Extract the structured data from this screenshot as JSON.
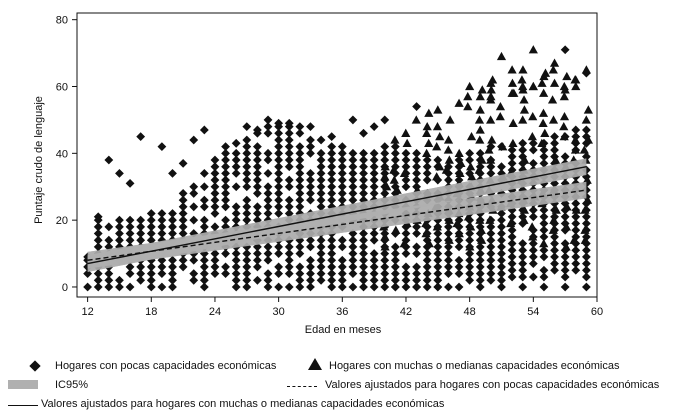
{
  "chart_data": {
    "type": "scatter",
    "title": "",
    "xlabel": "Edad en meses",
    "ylabel": "Puntaje crudo de lenguaje",
    "xlim": [
      11,
      60
    ],
    "ylim": [
      -3,
      82
    ],
    "xticks": [
      12,
      18,
      24,
      30,
      36,
      42,
      48,
      54,
      60
    ],
    "yticks": [
      0,
      20,
      40,
      60,
      80
    ],
    "grid": false,
    "legend_position": "bottom",
    "series": [
      {
        "name": "Hogares con pocas capacidades económicas",
        "marker": "diamond",
        "age_range": [
          12,
          59
        ],
        "band_low": [
          0,
          0,
          0,
          0,
          0,
          0,
          0,
          0,
          0,
          0,
          0,
          0,
          0,
          0,
          0,
          0,
          0,
          0,
          0,
          0,
          0,
          0,
          0,
          0,
          0,
          0,
          0,
          0,
          0,
          0,
          0,
          0,
          0,
          0,
          0,
          2,
          2,
          2,
          2,
          2,
          3,
          3,
          3,
          3,
          3,
          3,
          3,
          3
        ],
        "band_high": [
          9,
          21,
          18,
          20,
          20,
          21,
          22,
          22,
          27,
          28,
          30,
          35,
          38,
          42,
          42,
          45,
          47,
          49,
          49,
          49,
          48,
          48,
          46,
          43,
          43,
          41,
          41,
          41,
          42,
          42,
          40,
          40,
          38,
          38,
          38,
          40,
          40,
          40,
          42,
          42,
          42,
          43,
          44,
          44,
          46,
          46,
          48,
          48
        ],
        "points": [
          [
            12,
            9
          ],
          [
            13,
            21
          ],
          [
            14,
            38
          ],
          [
            15,
            34
          ],
          [
            16,
            31
          ],
          [
            17,
            45
          ],
          [
            19,
            42
          ],
          [
            20,
            34
          ],
          [
            21,
            37
          ],
          [
            22,
            44
          ],
          [
            23,
            47
          ],
          [
            26,
            43
          ],
          [
            27,
            48
          ],
          [
            28,
            47
          ],
          [
            29,
            50
          ],
          [
            30,
            49
          ],
          [
            31,
            49
          ],
          [
            33,
            42
          ],
          [
            35,
            45
          ],
          [
            37,
            50
          ],
          [
            38,
            46
          ],
          [
            39,
            48
          ],
          [
            40,
            50
          ],
          [
            43,
            54
          ],
          [
            41,
            0
          ],
          [
            43,
            0
          ],
          [
            45,
            0
          ],
          [
            47,
            0
          ],
          [
            49,
            0
          ],
          [
            51,
            0
          ],
          [
            53,
            0
          ],
          [
            55,
            0
          ],
          [
            57,
            71
          ],
          [
            57,
            0
          ],
          [
            59,
            0
          ],
          [
            59,
            64
          ]
        ]
      },
      {
        "name": "Hogares con muchas o medianas capacidades económicas",
        "marker": "triangle",
        "age_range": [
          40,
          59
        ],
        "band_low": [
          12,
          12,
          12,
          12,
          12,
          12,
          12,
          12,
          12,
          12,
          12,
          12,
          12,
          12,
          12,
          12,
          12,
          12,
          12,
          12
        ],
        "band_high": [
          42,
          44,
          46,
          50,
          52,
          54,
          56,
          58,
          60,
          62,
          62,
          63,
          64,
          65,
          66,
          67,
          68,
          66,
          65,
          62
        ],
        "points": [
          [
            44,
            48
          ],
          [
            45,
            53
          ],
          [
            47,
            55
          ],
          [
            48,
            60
          ],
          [
            49,
            57
          ],
          [
            50,
            61
          ],
          [
            51,
            69
          ],
          [
            52,
            65
          ],
          [
            53,
            60
          ],
          [
            54,
            71
          ],
          [
            55,
            63
          ],
          [
            56,
            67
          ],
          [
            57,
            59
          ],
          [
            58,
            62
          ],
          [
            59,
            65
          ],
          [
            50,
            57
          ],
          [
            52,
            58
          ],
          [
            54,
            60
          ],
          [
            56,
            61
          ],
          [
            58,
            60
          ]
        ]
      }
    ],
    "fitted_lines": [
      {
        "name": "Valores ajustados para hogares con pocas capacidades económicas",
        "style": "dashed",
        "x": [
          12,
          59
        ],
        "y": [
          8,
          29
        ]
      },
      {
        "name": "Valores ajustados para hogares con muchas o medianas capacidades económicas",
        "style": "solid",
        "x": [
          12,
          59
        ],
        "y": [
          7,
          36
        ]
      }
    ],
    "confidence_band": {
      "name": "IC95%",
      "lines": [
        {
          "x": [
            12,
            59
          ],
          "y_low": [
            5.5,
            26.5
          ],
          "y_high": [
            10.5,
            31.5
          ]
        },
        {
          "x": [
            12,
            59
          ],
          "y_low": [
            4.5,
            33.5
          ],
          "y_high": [
            9.5,
            38.5
          ]
        }
      ]
    },
    "legend": {
      "diamond_label": "Hogares con pocas capacidades económicas",
      "triangle_label": "Hogares con muchas o medianas capacidades económicas",
      "ci_label": "IC95%",
      "dashed_label": "Valores ajustados para hogares con pocas capacidades económicas",
      "solid_label": "Valores ajustados para hogares con muchas o medianas capacidades económicas"
    },
    "colors": {
      "marker": "#111111",
      "ci_band": "#b0b0b0",
      "axis": "#111111"
    }
  }
}
